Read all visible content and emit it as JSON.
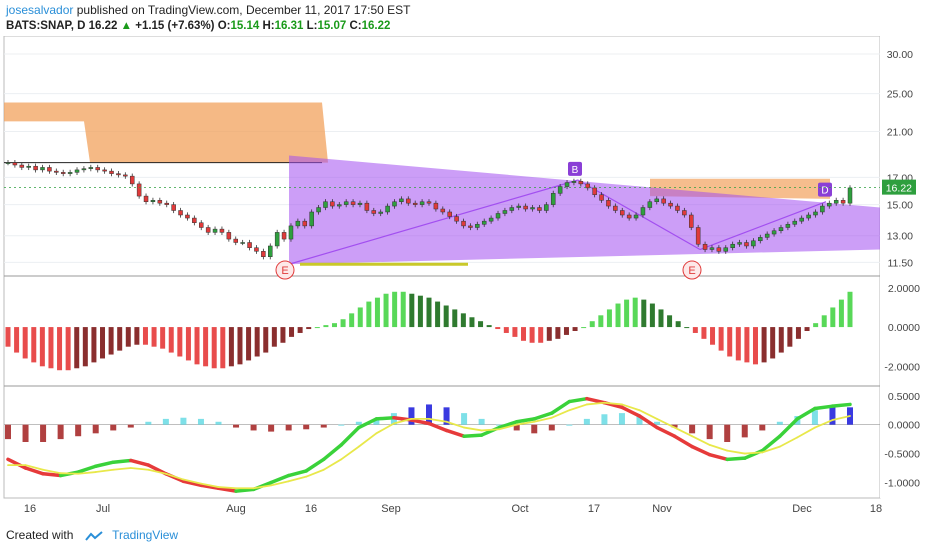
{
  "header": {
    "author": "josesalvador",
    "published": "published on TradingView.com, December 11, 2017 17:50 EST",
    "symbol": "BATS:SNAP, D",
    "last": "16.22",
    "change": "+1.15 (+7.63%)",
    "o_label": "O:",
    "o": "15.14",
    "h_label": "H:",
    "h": "16.31",
    "l_label": "L:",
    "l": "15.07",
    "c_label": "C:",
    "c": "16.22"
  },
  "footer": {
    "created": "Created with",
    "brand": "TradingView"
  },
  "colors": {
    "up": "#2e9f3e",
    "down": "#e03a3a",
    "pattern": "#a24ff0",
    "zone": "#f2a15c",
    "badge": "#8a3fd6"
  },
  "chart_data": [
    {
      "type": "candlestick",
      "price_axis": {
        "ticks": [
          "30.00",
          "25.00",
          "21.00",
          "17.00",
          "15.00",
          "13.00",
          "11.50"
        ],
        "last_label": "16.22"
      },
      "x_ticks": [
        "16",
        "Jul",
        "Aug",
        "16",
        "Sep",
        "Oct",
        "17",
        "Nov",
        "Dec",
        "18"
      ],
      "close_series": [
        18.2,
        18.0,
        17.8,
        17.9,
        17.6,
        17.8,
        17.5,
        17.4,
        17.3,
        17.4,
        17.6,
        17.7,
        17.8,
        17.6,
        17.5,
        17.3,
        17.2,
        17.1,
        16.5,
        15.6,
        15.2,
        15.3,
        15.1,
        15.0,
        14.6,
        14.3,
        14.1,
        13.8,
        13.5,
        13.2,
        13.4,
        13.2,
        12.8,
        12.6,
        12.6,
        12.3,
        12.1,
        11.8,
        12.4,
        13.2,
        12.8,
        13.6,
        13.9,
        13.6,
        14.5,
        14.8,
        15.2,
        14.9,
        15.0,
        15.2,
        15.0,
        15.1,
        14.6,
        14.4,
        14.5,
        14.9,
        15.2,
        15.4,
        15.1,
        15.0,
        15.2,
        15.1,
        14.7,
        14.5,
        14.2,
        13.9,
        13.6,
        13.5,
        13.7,
        13.9,
        14.1,
        14.4,
        14.6,
        14.8,
        14.9,
        14.7,
        14.8,
        14.6,
        15.0,
        15.8,
        16.3,
        16.6,
        16.7,
        16.5,
        16.2,
        15.7,
        15.3,
        14.9,
        14.6,
        14.3,
        14.1,
        14.3,
        14.8,
        15.2,
        15.4,
        15.1,
        14.9,
        14.6,
        14.3,
        13.5,
        12.5,
        12.2,
        12.3,
        12.1,
        12.3,
        12.5,
        12.6,
        12.4,
        12.7,
        12.9,
        13.1,
        13.3,
        13.5,
        13.7,
        13.9,
        14.1,
        14.3,
        14.5,
        14.9,
        15.1,
        15.3,
        15.1,
        16.2
      ],
      "patterns": [
        {
          "labels": [
            "E",
            "B",
            "D",
            "E"
          ]
        }
      ]
    },
    {
      "type": "bar",
      "title": "",
      "axis_ticks": [
        "2.0000",
        "0.0000",
        "-2.0000"
      ],
      "values": [
        -1.0,
        -1.3,
        -1.6,
        -1.8,
        -2.0,
        -2.1,
        -2.2,
        -2.2,
        -2.1,
        -2.0,
        -1.8,
        -1.6,
        -1.4,
        -1.2,
        -1.0,
        -0.9,
        -0.9,
        -1.0,
        -1.1,
        -1.3,
        -1.5,
        -1.7,
        -1.9,
        -2.0,
        -2.1,
        -2.1,
        -2.0,
        -1.9,
        -1.7,
        -1.5,
        -1.3,
        -1.0,
        -0.8,
        -0.5,
        -0.3,
        -0.1,
        0.0,
        0.1,
        0.2,
        0.4,
        0.7,
        1.0,
        1.3,
        1.5,
        1.7,
        1.8,
        1.8,
        1.7,
        1.6,
        1.5,
        1.3,
        1.1,
        0.9,
        0.7,
        0.5,
        0.3,
        0.1,
        -0.1,
        -0.3,
        -0.5,
        -0.7,
        -0.8,
        -0.8,
        -0.7,
        -0.6,
        -0.4,
        -0.2,
        0.0,
        0.3,
        0.6,
        0.9,
        1.2,
        1.4,
        1.5,
        1.4,
        1.2,
        0.9,
        0.6,
        0.3,
        0.0,
        -0.3,
        -0.6,
        -0.9,
        -1.2,
        -1.5,
        -1.7,
        -1.8,
        -1.9,
        -1.8,
        -1.6,
        -1.3,
        -1.0,
        -0.6,
        -0.2,
        0.2,
        0.6,
        1.0,
        1.4,
        1.8
      ]
    },
    {
      "type": "line",
      "axis_ticks": [
        "0.5000",
        "0.0000",
        "-0.5000",
        "-1.0000"
      ],
      "series": [
        {
          "values": [
            -0.6,
            -0.75,
            -0.85,
            -0.88,
            -0.82,
            -0.72,
            -0.65,
            -0.62,
            -0.7,
            -0.85,
            -0.98,
            -1.05,
            -1.1,
            -1.15,
            -1.12,
            -1.0,
            -0.88,
            -0.8,
            -0.6,
            -0.35,
            -0.05,
            0.1,
            0.12,
            0.08,
            0.02,
            -0.1,
            -0.2,
            -0.18,
            -0.05,
            0.05,
            0.1,
            0.2,
            0.4,
            0.45,
            0.38,
            0.3,
            0.15,
            -0.05,
            -0.2,
            -0.38,
            -0.52,
            -0.6,
            -0.58,
            -0.45,
            -0.2,
            0.1,
            0.28,
            0.32,
            0.35
          ]
        },
        {
          "values": [
            -0.7,
            -0.7,
            -0.78,
            -0.84,
            -0.85,
            -0.82,
            -0.78,
            -0.75,
            -0.78,
            -0.85,
            -0.95,
            -1.02,
            -1.08,
            -1.1,
            -1.1,
            -1.05,
            -0.98,
            -0.9,
            -0.78,
            -0.6,
            -0.38,
            -0.15,
            0.02,
            0.1,
            0.1,
            0.05,
            -0.05,
            -0.1,
            -0.08,
            0.0,
            0.05,
            0.12,
            0.25,
            0.35,
            0.38,
            0.35,
            0.25,
            0.1,
            -0.05,
            -0.2,
            -0.35,
            -0.45,
            -0.5,
            -0.48,
            -0.38,
            -0.22,
            -0.05,
            0.08,
            0.15
          ]
        }
      ],
      "histogram": [
        -0.25,
        -0.3,
        -0.3,
        -0.25,
        -0.2,
        -0.15,
        -0.1,
        -0.05,
        0.05,
        0.1,
        0.12,
        0.1,
        0.05,
        -0.05,
        -0.1,
        -0.12,
        -0.1,
        -0.08,
        -0.05,
        0.0,
        0.05,
        0.1,
        0.2,
        0.3,
        0.35,
        0.3,
        0.2,
        0.1,
        0.0,
        -0.1,
        -0.15,
        -0.1,
        0.0,
        0.1,
        0.18,
        0.2,
        0.15,
        0.05,
        -0.05,
        -0.15,
        -0.25,
        -0.3,
        -0.22,
        -0.1,
        0.05,
        0.15,
        0.25,
        0.3,
        0.3
      ]
    }
  ]
}
